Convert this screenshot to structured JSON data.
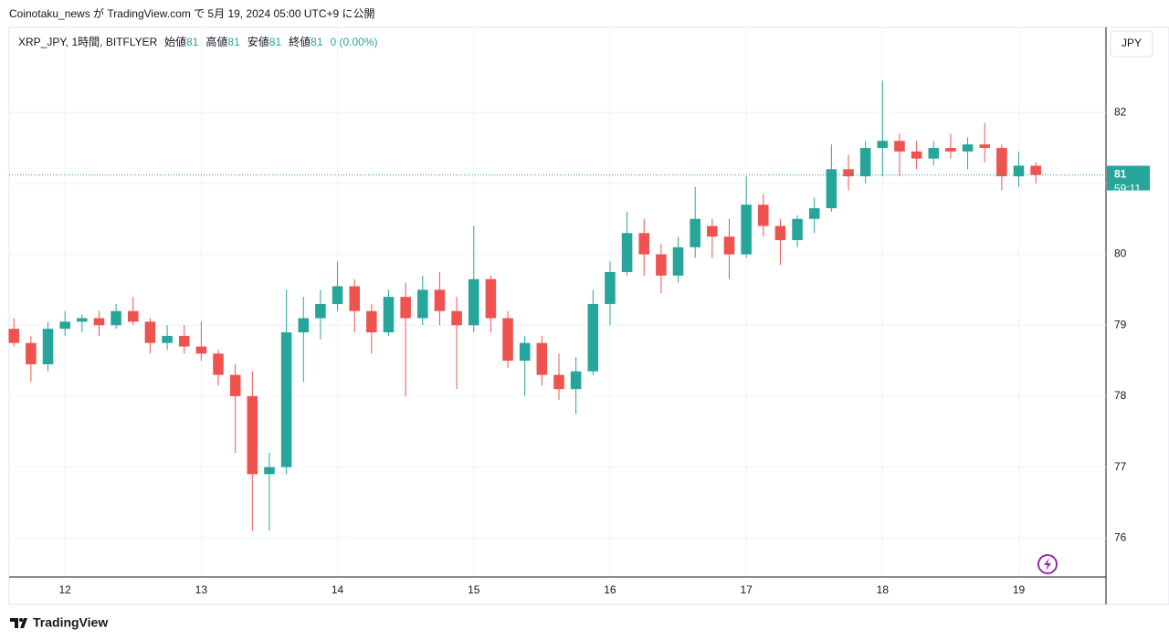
{
  "header": "Coinotaku_news が TradingView.com で 5月 19, 2024 05:00 UTC+9 に公開",
  "footer": "TradingView",
  "chart_data": {
    "type": "candlestick",
    "symbol": "XRP_JPY, 1時間, BITFLYER",
    "ohlc_labels": [
      "始値",
      "高値",
      "安値",
      "終値"
    ],
    "ohlc_values": [
      81,
      81,
      81,
      81
    ],
    "change": "0 (0.00%)",
    "currency": "JPY",
    "last_price": {
      "value": 81.12,
      "label": "81"
    },
    "countdown": "59:11",
    "up_color": "#26a69a",
    "down_color": "#ef5350",
    "grid": true,
    "xlim": [
      11.59,
      19.64
    ],
    "xticks": [
      12,
      13,
      14,
      15,
      16,
      17,
      18,
      19
    ],
    "ylim": [
      75.45,
      83.2
    ],
    "yticks": [
      76,
      77,
      78,
      79,
      80,
      81,
      82
    ],
    "ytick_labels_shown": [
      76,
      77,
      78,
      79,
      80,
      82
    ],
    "x": [
      11.625,
      11.75,
      11.875,
      12.0,
      12.125,
      12.25,
      12.375,
      12.5,
      12.625,
      12.75,
      12.875,
      13.0,
      13.125,
      13.25,
      13.375,
      13.5,
      13.625,
      13.75,
      13.875,
      14.0,
      14.125,
      14.25,
      14.375,
      14.5,
      14.625,
      14.75,
      14.875,
      15.0,
      15.125,
      15.25,
      15.375,
      15.5,
      15.625,
      15.75,
      15.875,
      16.0,
      16.125,
      16.25,
      16.375,
      16.5,
      16.625,
      16.75,
      16.875,
      17.0,
      17.125,
      17.25,
      17.375,
      17.5,
      17.625,
      17.75,
      17.875,
      18.0,
      18.125,
      18.25,
      18.375,
      18.5,
      18.625,
      18.75,
      18.875,
      19.0,
      19.125
    ],
    "open": [
      78.95,
      78.75,
      78.45,
      78.95,
      79.05,
      79.1,
      79.0,
      79.2,
      79.05,
      78.75,
      78.85,
      78.7,
      78.6,
      78.3,
      78.0,
      76.9,
      77.0,
      78.9,
      79.1,
      79.3,
      79.55,
      79.2,
      78.9,
      79.4,
      79.1,
      79.5,
      79.2,
      79.0,
      79.65,
      79.1,
      78.5,
      78.75,
      78.3,
      78.1,
      78.35,
      79.3,
      79.75,
      80.3,
      80.0,
      79.7,
      80.1,
      80.4,
      80.25,
      80.0,
      80.7,
      80.4,
      80.2,
      80.5,
      80.65,
      81.2,
      81.1,
      81.5,
      81.6,
      81.45,
      81.35,
      81.5,
      81.45,
      81.55,
      81.5,
      81.1,
      81.25
    ],
    "high": [
      79.1,
      78.85,
      79.05,
      79.2,
      79.15,
      79.2,
      79.3,
      79.4,
      79.1,
      79.0,
      79.0,
      79.05,
      78.65,
      78.45,
      78.35,
      77.2,
      79.5,
      79.4,
      79.5,
      79.9,
      79.65,
      79.3,
      79.5,
      79.6,
      79.7,
      79.75,
      79.4,
      80.4,
      79.7,
      79.2,
      78.85,
      78.85,
      78.6,
      78.55,
      79.5,
      79.9,
      80.6,
      80.5,
      80.15,
      80.25,
      80.95,
      80.5,
      80.5,
      81.1,
      80.85,
      80.5,
      80.55,
      80.8,
      81.55,
      81.4,
      81.6,
      82.45,
      81.7,
      81.6,
      81.6,
      81.7,
      81.65,
      81.85,
      81.55,
      81.45,
      81.3
    ],
    "low": [
      78.7,
      78.2,
      78.35,
      78.85,
      78.9,
      78.85,
      78.95,
      79.0,
      78.6,
      78.65,
      78.6,
      78.5,
      78.15,
      77.2,
      76.1,
      76.1,
      76.9,
      78.2,
      78.8,
      79.2,
      78.9,
      78.6,
      78.85,
      78.0,
      79.0,
      79.0,
      78.1,
      78.9,
      78.9,
      78.4,
      78.0,
      78.15,
      77.95,
      77.75,
      78.3,
      79.0,
      79.7,
      79.7,
      79.45,
      79.6,
      79.95,
      79.95,
      79.65,
      79.95,
      80.25,
      79.85,
      80.1,
      80.3,
      80.6,
      80.9,
      81.0,
      81.1,
      81.1,
      81.2,
      81.25,
      81.35,
      81.2,
      81.3,
      80.9,
      80.95,
      81.0
    ],
    "close": [
      78.75,
      78.45,
      78.95,
      79.05,
      79.1,
      79.0,
      79.2,
      79.05,
      78.75,
      78.85,
      78.7,
      78.6,
      78.3,
      78.0,
      76.9,
      77.0,
      78.9,
      79.1,
      79.3,
      79.55,
      79.2,
      78.9,
      79.4,
      79.1,
      79.5,
      79.2,
      79.0,
      79.65,
      79.1,
      78.5,
      78.75,
      78.3,
      78.1,
      78.35,
      79.3,
      79.75,
      80.3,
      80.0,
      79.7,
      80.1,
      80.5,
      80.25,
      80.0,
      80.7,
      80.4,
      80.2,
      80.5,
      80.65,
      81.2,
      81.1,
      81.5,
      81.6,
      81.45,
      81.35,
      81.5,
      81.45,
      81.55,
      81.5,
      81.1,
      81.25,
      81.12
    ]
  }
}
